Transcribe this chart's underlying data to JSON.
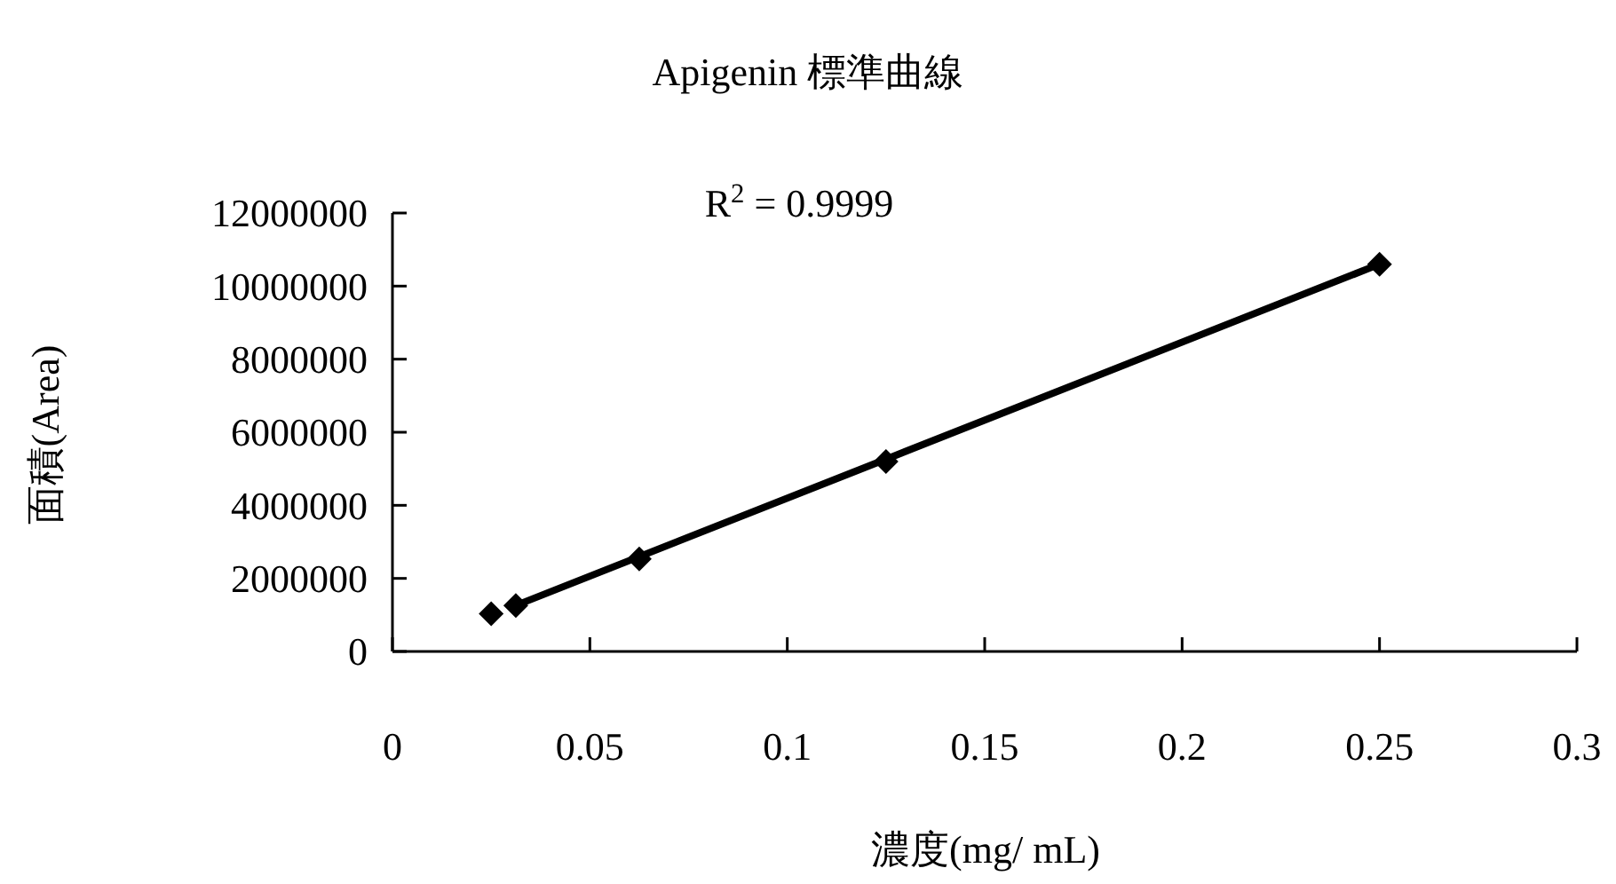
{
  "chart_data": {
    "type": "scatter",
    "title": "Apigenin 標準曲線",
    "xlabel": "濃度(mg/ mL)",
    "ylabel": "面積(Area)",
    "annotations": [
      "R$^{2}$ = 0.9999"
    ],
    "series": [
      {
        "color": "#000000",
        "marker": "diamond",
        "x": [
          0.025,
          0.03125,
          0.0625,
          0.125,
          0.25
        ],
        "values": [
          1030000,
          1260000,
          2530000,
          5200000,
          10600000
        ]
      },
      {
        "type": "line",
        "color": "#000000",
        "marker": "none",
        "line_style": "solid",
        "x": [
          0.03125,
          0.25
        ],
        "values": [
          1260000,
          10600000
        ]
      }
    ],
    "xlim": [
      0,
      0.3
    ],
    "xticks": [
      0,
      0.05,
      0.1,
      0.15,
      0.2,
      0.25,
      0.3
    ],
    "ylim": [
      0,
      12000000
    ],
    "yticks": [
      0,
      2000000,
      4000000,
      6000000,
      8000000,
      10000000,
      12000000
    ],
    "grid": false
  }
}
